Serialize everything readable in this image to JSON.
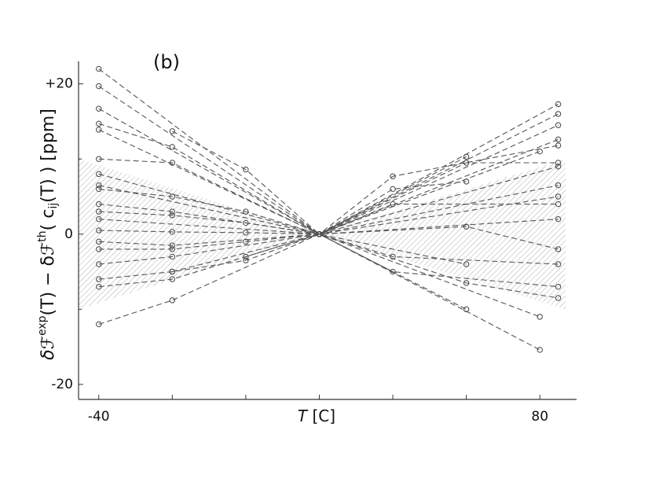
{
  "chart_data": {
    "type": "line",
    "title": "(b)",
    "x_label": {
      "parts": [
        "T",
        " [C]"
      ]
    },
    "y_label": {
      "parts": [
        "δℱ",
        "exp",
        "(T)  −  δℱ",
        "th",
        "( c",
        "ij",
        "(T) )  [ppm]"
      ]
    },
    "xlim": [
      -45.5,
      90
    ],
    "ylim": [
      -22,
      23
    ],
    "xticks": [
      -40,
      80
    ],
    "x_minor_ticks": [
      -20,
      0,
      20,
      40,
      60
    ],
    "yticks": [
      {
        "value": 20,
        "label": "+20"
      },
      0,
      -20
    ],
    "y_minor_ticks": [
      10,
      -10
    ],
    "color": "#555555",
    "shaded_band": {
      "x": [
        -45.5,
        20,
        87
      ],
      "upper": [
        10,
        0,
        10
      ],
      "lower": [
        -10,
        0,
        -10
      ],
      "color": "#999999"
    },
    "series": [
      {
        "x": [
          -40,
          20,
          85
        ],
        "values": [
          22,
          0,
          17.3
        ]
      },
      {
        "x": [
          -40,
          20,
          85
        ],
        "values": [
          19.7,
          0,
          16
        ]
      },
      {
        "x": [
          -40,
          20,
          80
        ],
        "values": [
          16.7,
          0,
          11
        ]
      },
      {
        "x": [
          -40,
          -20,
          20,
          85
        ],
        "values": [
          14.7,
          11.6,
          0,
          14.5
        ]
      },
      {
        "x": [
          -40,
          20,
          60
        ],
        "values": [
          13.9,
          0,
          10.3
        ]
      },
      {
        "x": [
          -20,
          0,
          20,
          85
        ],
        "values": [
          13.7,
          8.6,
          0,
          12.6
        ]
      },
      {
        "x": [
          -40,
          -20,
          20,
          40,
          85
        ],
        "values": [
          10,
          9.5,
          0,
          7.7,
          11.8
        ]
      },
      {
        "x": [
          -40,
          20,
          60,
          85
        ],
        "values": [
          8,
          0,
          9.5,
          9.5
        ]
      },
      {
        "x": [
          -40,
          -20,
          0,
          20,
          85
        ],
        "values": [
          6,
          5,
          3,
          0,
          6.5
        ]
      },
      {
        "x": [
          -40,
          -20,
          20,
          40,
          60
        ],
        "values": [
          4,
          3,
          0,
          6,
          7
        ]
      },
      {
        "x": [
          -40,
          20,
          40,
          85
        ],
        "values": [
          2,
          0,
          4,
          4
        ]
      },
      {
        "x": [
          -40,
          -20,
          0,
          20,
          85
        ],
        "values": [
          0.5,
          0.3,
          0.2,
          0,
          2
        ]
      },
      {
        "x": [
          -40,
          -20,
          20,
          60,
          85
        ],
        "values": [
          -1,
          -1.5,
          0,
          1,
          -2
        ]
      },
      {
        "x": [
          -40,
          -20,
          0,
          20,
          40,
          85
        ],
        "values": [
          -2,
          -2,
          -1,
          0,
          -3,
          -4
        ]
      },
      {
        "x": [
          -40,
          -20,
          20,
          60
        ],
        "values": [
          -4,
          -3,
          0,
          -4
        ]
      },
      {
        "x": [
          -40,
          -20,
          0,
          20,
          40,
          85
        ],
        "values": [
          -6,
          -5,
          -3.5,
          0,
          -5,
          -7
        ]
      },
      {
        "x": [
          -40,
          -20,
          20,
          60,
          85
        ],
        "values": [
          -7,
          -6,
          0,
          -6.5,
          -8.5
        ]
      },
      {
        "x": [
          -40,
          -20,
          20,
          60
        ],
        "values": [
          -12,
          -8.8,
          0,
          -10
        ]
      },
      {
        "x": [
          -20,
          20,
          80
        ],
        "values": [
          -5,
          0,
          -11
        ]
      },
      {
        "x": [
          0,
          20,
          80
        ],
        "values": [
          -3,
          0,
          -15.4
        ]
      },
      {
        "x": [
          -40,
          20,
          85
        ],
        "values": [
          6.5,
          0,
          5
        ]
      },
      {
        "x": [
          -40,
          -20,
          0,
          20,
          85
        ],
        "values": [
          3,
          2.5,
          1.5,
          0,
          9
        ]
      }
    ]
  }
}
